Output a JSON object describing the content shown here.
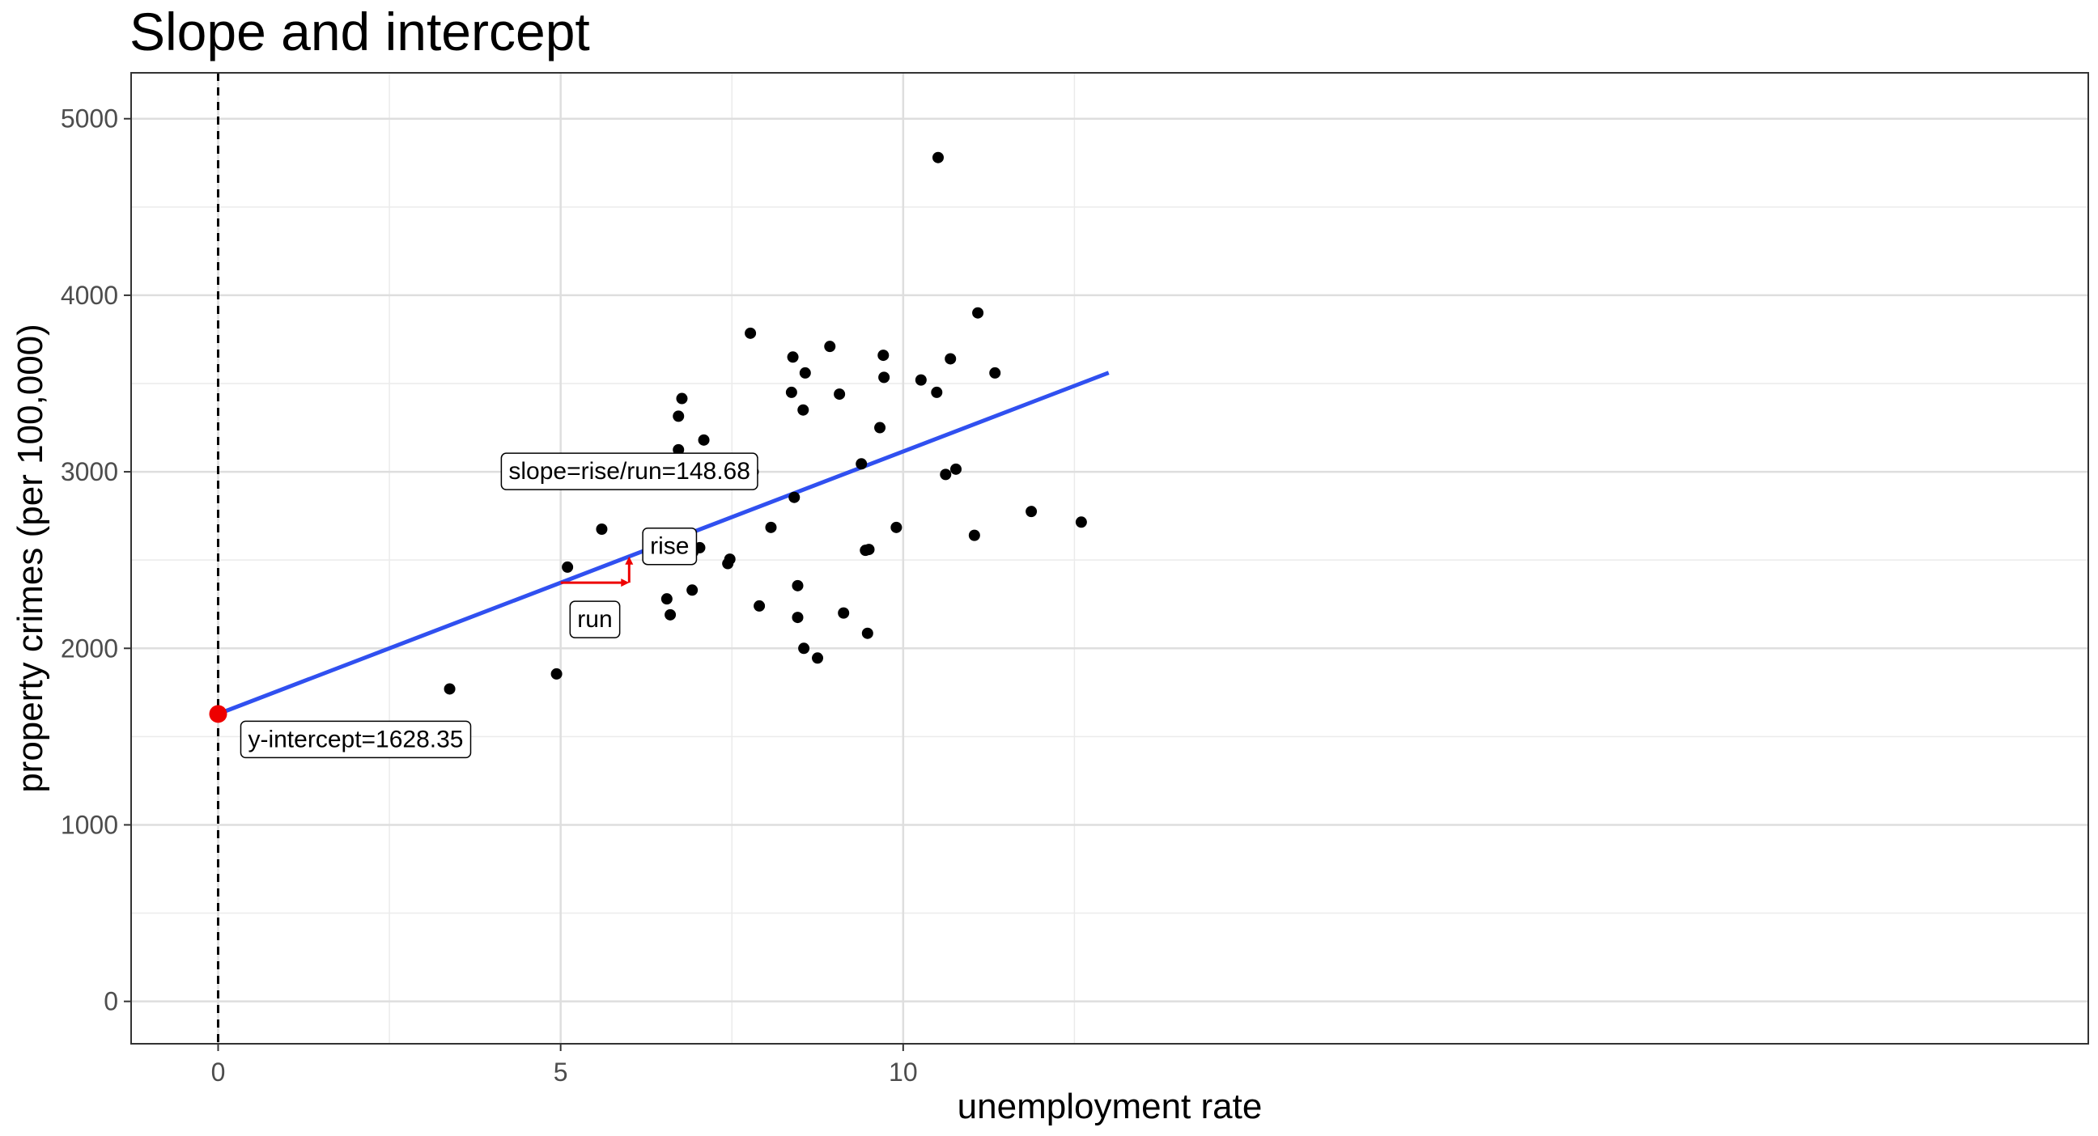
{
  "chart_data": {
    "type": "scatter",
    "title": "Slope and intercept",
    "xlabel": "unemployment rate",
    "ylabel": "property crimes (per 100,000)",
    "xlim": [
      -1.27,
      27.3
    ],
    "ylim": [
      -240,
      5260
    ],
    "x_ticks": [
      0,
      5,
      10
    ],
    "x_tick_labels": [
      "0",
      "5",
      "10"
    ],
    "x_minor_ticks": [
      2.5,
      7.5,
      12.5
    ],
    "y_ticks": [
      0,
      1000,
      2000,
      3000,
      4000,
      5000
    ],
    "y_tick_labels": [
      "0",
      "1000",
      "2000",
      "3000",
      "4000",
      "5000"
    ],
    "y_minor_ticks": [
      500,
      1500,
      2500,
      3500,
      4500
    ],
    "grid": true,
    "points": [
      {
        "x": 3.38,
        "y": 1770
      },
      {
        "x": 4.94,
        "y": 1855
      },
      {
        "x": 5.1,
        "y": 2460
      },
      {
        "x": 5.6,
        "y": 2675
      },
      {
        "x": 6.55,
        "y": 2280
      },
      {
        "x": 6.6,
        "y": 2190
      },
      {
        "x": 6.72,
        "y": 3315
      },
      {
        "x": 6.72,
        "y": 3125
      },
      {
        "x": 6.77,
        "y": 3415
      },
      {
        "x": 6.92,
        "y": 2330
      },
      {
        "x": 6.93,
        "y": 2545
      },
      {
        "x": 7.03,
        "y": 2570
      },
      {
        "x": 7.09,
        "y": 3180
      },
      {
        "x": 7.44,
        "y": 2480
      },
      {
        "x": 7.47,
        "y": 2505
      },
      {
        "x": 7.77,
        "y": 3785
      },
      {
        "x": 7.81,
        "y": 3000
      },
      {
        "x": 7.9,
        "y": 2240
      },
      {
        "x": 8.07,
        "y": 2685
      },
      {
        "x": 8.37,
        "y": 3450
      },
      {
        "x": 8.39,
        "y": 3650
      },
      {
        "x": 8.41,
        "y": 2855
      },
      {
        "x": 8.46,
        "y": 2355
      },
      {
        "x": 8.46,
        "y": 2175
      },
      {
        "x": 8.54,
        "y": 3350
      },
      {
        "x": 8.55,
        "y": 2000
      },
      {
        "x": 8.57,
        "y": 3560
      },
      {
        "x": 8.75,
        "y": 1945
      },
      {
        "x": 8.93,
        "y": 3710
      },
      {
        "x": 9.07,
        "y": 3440
      },
      {
        "x": 9.13,
        "y": 2200
      },
      {
        "x": 9.39,
        "y": 3045
      },
      {
        "x": 9.45,
        "y": 2555
      },
      {
        "x": 9.48,
        "y": 2085
      },
      {
        "x": 9.5,
        "y": 2560
      },
      {
        "x": 9.66,
        "y": 3250
      },
      {
        "x": 9.71,
        "y": 3660
      },
      {
        "x": 9.72,
        "y": 3535
      },
      {
        "x": 9.9,
        "y": 2685
      },
      {
        "x": 10.26,
        "y": 3520
      },
      {
        "x": 10.49,
        "y": 3450
      },
      {
        "x": 10.51,
        "y": 4780
      },
      {
        "x": 10.62,
        "y": 2985
      },
      {
        "x": 10.69,
        "y": 3640
      },
      {
        "x": 10.77,
        "y": 3015
      },
      {
        "x": 11.04,
        "y": 2640
      },
      {
        "x": 11.09,
        "y": 3900
      },
      {
        "x": 11.34,
        "y": 3560
      },
      {
        "x": 11.87,
        "y": 2775
      },
      {
        "x": 12.6,
        "y": 2715
      }
    ],
    "fit_line": {
      "color": "#3050f0",
      "x": [
        0,
        13.0
      ]
    },
    "intercept": {
      "x": 0,
      "y": 1628.35,
      "color": "#ee0000"
    },
    "slope": 148.68,
    "vline_x": 0,
    "run_arrow": {
      "x_start": 5.0,
      "x_end": 6.0,
      "y": 2371.75,
      "color": "#ee0000"
    },
    "rise_arrow": {
      "x": 6.0,
      "y_start": 2371.75,
      "y_end": 2520.43,
      "color": "#ee0000"
    },
    "annotations": [
      {
        "key": "intercept",
        "text": "y-intercept=1628.35"
      },
      {
        "key": "slope",
        "text": "slope=rise/run=148.68"
      },
      {
        "key": "rise",
        "text": "rise"
      },
      {
        "key": "run",
        "text": "run"
      }
    ]
  }
}
